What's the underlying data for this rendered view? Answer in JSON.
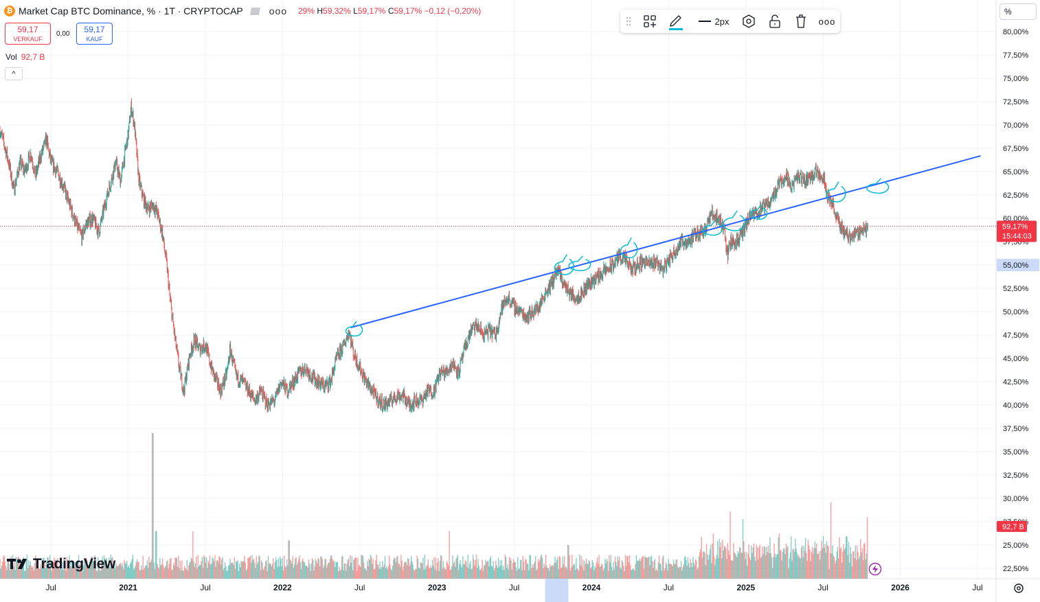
{
  "header": {
    "title": "Market Cap BTC Dominance, % · 1T · CRYPTOCAP",
    "coin_glyph": "₿",
    "more_glyph": "ooo",
    "ohlc": {
      "o": "29%",
      "h_label": "H",
      "h": "59,32%",
      "l_label": "L",
      "l": "59,17%",
      "c_label": "C",
      "c": "59,17%",
      "chg": "−0,12 (−0,20%)"
    }
  },
  "trade": {
    "sell_price": "59,17",
    "sell_label": "VERKAUF",
    "spread": "0,00",
    "buy_price": "59,17",
    "buy_label": "KAUF"
  },
  "volume": {
    "label": "Vol",
    "value": "92,7 B"
  },
  "collapse_glyph": "^",
  "toolbar": {
    "width_label": "2px",
    "more_glyph": "ooo"
  },
  "scale_mode": "%",
  "logo": {
    "text": "TradingView",
    "mark": "17"
  },
  "colors": {
    "up": "#26a69a",
    "down": "#ef5350",
    "trendline": "#2962ff",
    "annotation": "#00bcd4",
    "price_tag": "#f23645",
    "accent": "#2962ff"
  },
  "chart_data": {
    "type": "candlestick",
    "title": "Market Cap BTC Dominance, %",
    "interval": "1T",
    "y_axis": {
      "range": [
        21.4,
        83.4
      ],
      "ticks": [
        "22,50%",
        "25,00%",
        "27,50%",
        "30,00%",
        "32,50%",
        "35,00%",
        "37,50%",
        "40,00%",
        "42,50%",
        "45,00%",
        "47,50%",
        "50,00%",
        "52,50%",
        "55,00%",
        "57,50%",
        "60,00%",
        "62,50%",
        "65,00%",
        "67,50%",
        "70,00%",
        "72,50%",
        "75,00%",
        "77,50%",
        "80,00%"
      ],
      "tick_values": [
        22.5,
        25,
        27.5,
        30,
        32.5,
        35,
        37.5,
        40,
        42.5,
        45,
        47.5,
        50,
        52.5,
        55,
        57.5,
        60,
        62.5,
        65,
        67.5,
        70,
        72.5,
        75,
        77.5,
        80
      ]
    },
    "x_axis": {
      "range": [
        2020.17,
        2026.62
      ],
      "ticks": [
        "Jul",
        "2021",
        "Jul",
        "2022",
        "Jul",
        "2023",
        "Jul",
        "2024",
        "Jul",
        "2025",
        "Jul",
        "2026",
        "Jul"
      ],
      "tick_values": [
        2020.5,
        2021.0,
        2021.5,
        2022.0,
        2022.5,
        2023.0,
        2023.5,
        2024.0,
        2024.5,
        2025.0,
        2025.5,
        2026.0,
        2026.5
      ],
      "highlight_range": [
        2023.7,
        2023.85
      ]
    },
    "series_path": [
      [
        2020.17,
        69.5
      ],
      [
        2020.22,
        66.5
      ],
      [
        2020.26,
        63.0
      ],
      [
        2020.3,
        66.0
      ],
      [
        2020.33,
        65.0
      ],
      [
        2020.37,
        67.0
      ],
      [
        2020.4,
        64.5
      ],
      [
        2020.43,
        66.5
      ],
      [
        2020.47,
        68.5
      ],
      [
        2020.5,
        66.0
      ],
      [
        2020.54,
        65.0
      ],
      [
        2020.58,
        63.5
      ],
      [
        2020.62,
        61.5
      ],
      [
        2020.66,
        59.5
      ],
      [
        2020.7,
        58.0
      ],
      [
        2020.73,
        59.5
      ],
      [
        2020.77,
        60.0
      ],
      [
        2020.81,
        58.5
      ],
      [
        2020.85,
        61.5
      ],
      [
        2020.88,
        63.5
      ],
      [
        2020.92,
        66.0
      ],
      [
        2020.95,
        64.0
      ],
      [
        2021.0,
        69.0
      ],
      [
        2021.02,
        72.0
      ],
      [
        2021.04,
        70.0
      ],
      [
        2021.07,
        64.0
      ],
      [
        2021.1,
        62.0
      ],
      [
        2021.13,
        61.0
      ],
      [
        2021.16,
        61.5
      ],
      [
        2021.19,
        60.5
      ],
      [
        2021.22,
        58.5
      ],
      [
        2021.25,
        55.0
      ],
      [
        2021.27,
        51.5
      ],
      [
        2021.3,
        47.5
      ],
      [
        2021.33,
        44.0
      ],
      [
        2021.36,
        41.5
      ],
      [
        2021.38,
        43.5
      ],
      [
        2021.4,
        45.5
      ],
      [
        2021.43,
        47.0
      ],
      [
        2021.46,
        46.0
      ],
      [
        2021.5,
        46.5
      ],
      [
        2021.53,
        44.5
      ],
      [
        2021.56,
        43.0
      ],
      [
        2021.6,
        41.5
      ],
      [
        2021.64,
        43.5
      ],
      [
        2021.66,
        46.0
      ],
      [
        2021.7,
        43.0
      ],
      [
        2021.74,
        42.5
      ],
      [
        2021.78,
        41.5
      ],
      [
        2021.82,
        40.5
      ],
      [
        2021.86,
        41.5
      ],
      [
        2021.9,
        40.0
      ],
      [
        2021.95,
        40.5
      ],
      [
        2021.99,
        42.5
      ],
      [
        2022.03,
        41.5
      ],
      [
        2022.07,
        42.5
      ],
      [
        2022.11,
        43.5
      ],
      [
        2022.15,
        44.0
      ],
      [
        2022.19,
        43.0
      ],
      [
        2022.23,
        42.5
      ],
      [
        2022.27,
        42.0
      ],
      [
        2022.31,
        42.5
      ],
      [
        2022.35,
        45.0
      ],
      [
        2022.4,
        46.5
      ],
      [
        2022.43,
        48.0
      ],
      [
        2022.46,
        45.5
      ],
      [
        2022.5,
        44.0
      ],
      [
        2022.54,
        42.5
      ],
      [
        2022.58,
        41.5
      ],
      [
        2022.62,
        40.5
      ],
      [
        2022.66,
        40.0
      ],
      [
        2022.7,
        40.5
      ],
      [
        2022.74,
        41.0
      ],
      [
        2022.78,
        41.0
      ],
      [
        2022.82,
        40.0
      ],
      [
        2022.86,
        40.5
      ],
      [
        2022.9,
        40.5
      ],
      [
        2022.94,
        41.5
      ],
      [
        2022.98,
        41.5
      ],
      [
        2023.02,
        43.5
      ],
      [
        2023.06,
        43.5
      ],
      [
        2023.1,
        44.5
      ],
      [
        2023.14,
        43.5
      ],
      [
        2023.18,
        46.0
      ],
      [
        2023.22,
        48.0
      ],
      [
        2023.26,
        48.5
      ],
      [
        2023.3,
        47.5
      ],
      [
        2023.34,
        48.0
      ],
      [
        2023.38,
        47.5
      ],
      [
        2023.42,
        50.5
      ],
      [
        2023.46,
        51.5
      ],
      [
        2023.5,
        50.5
      ],
      [
        2023.54,
        50.0
      ],
      [
        2023.58,
        49.5
      ],
      [
        2023.62,
        50.0
      ],
      [
        2023.66,
        50.5
      ],
      [
        2023.7,
        52.0
      ],
      [
        2023.74,
        53.0
      ],
      [
        2023.78,
        54.5
      ],
      [
        2023.82,
        53.0
      ],
      [
        2023.86,
        52.0
      ],
      [
        2023.9,
        51.5
      ],
      [
        2023.94,
        52.0
      ],
      [
        2023.98,
        53.0
      ],
      [
        2024.02,
        53.5
      ],
      [
        2024.06,
        54.0
      ],
      [
        2024.1,
        54.5
      ],
      [
        2024.14,
        55.0
      ],
      [
        2024.18,
        56.0
      ],
      [
        2024.22,
        55.5
      ],
      [
        2024.26,
        54.5
      ],
      [
        2024.3,
        55.0
      ],
      [
        2024.34,
        55.5
      ],
      [
        2024.38,
        55.0
      ],
      [
        2024.42,
        55.5
      ],
      [
        2024.46,
        54.5
      ],
      [
        2024.5,
        55.5
      ],
      [
        2024.54,
        56.5
      ],
      [
        2024.58,
        57.5
      ],
      [
        2024.62,
        57.5
      ],
      [
        2024.66,
        58.0
      ],
      [
        2024.7,
        58.5
      ],
      [
        2024.74,
        59.0
      ],
      [
        2024.78,
        60.5
      ],
      [
        2024.82,
        60.0
      ],
      [
        2024.86,
        59.0
      ],
      [
        2024.88,
        56.0
      ],
      [
        2024.9,
        57.5
      ],
      [
        2024.94,
        57.5
      ],
      [
        2024.98,
        58.5
      ],
      [
        2025.02,
        60.0
      ],
      [
        2025.06,
        60.5
      ],
      [
        2025.1,
        61.0
      ],
      [
        2025.14,
        61.5
      ],
      [
        2025.18,
        62.5
      ],
      [
        2025.22,
        64.0
      ],
      [
        2025.26,
        64.5
      ],
      [
        2025.3,
        63.5
      ],
      [
        2025.34,
        64.5
      ],
      [
        2025.38,
        64.0
      ],
      [
        2025.42,
        64.5
      ],
      [
        2025.46,
        65.0
      ],
      [
        2025.5,
        64.5
      ],
      [
        2025.53,
        62.5
      ],
      [
        2025.56,
        61.5
      ],
      [
        2025.6,
        59.5
      ],
      [
        2025.64,
        58.5
      ],
      [
        2025.68,
        58.0
      ],
      [
        2025.72,
        58.5
      ],
      [
        2025.76,
        58.8
      ],
      [
        2025.79,
        59.17
      ]
    ],
    "trendline": {
      "from": [
        2022.44,
        48.3
      ],
      "to": [
        2026.52,
        66.7
      ],
      "color": "#2962ff"
    },
    "annotation_circles": [
      [
        2022.46,
        48.0
      ],
      [
        2023.82,
        54.8
      ],
      [
        2023.92,
        55.0
      ],
      [
        2024.24,
        56.6
      ],
      [
        2024.78,
        58.8
      ],
      [
        2024.92,
        59.5
      ],
      [
        2025.08,
        60.5
      ],
      [
        2025.58,
        62.6
      ],
      [
        2025.85,
        63.3
      ]
    ],
    "last_price": {
      "value": 59.17,
      "label": "59,17%",
      "countdown": "15:44:03"
    },
    "volume": {
      "label": "Vol",
      "last_label": "92,7 B",
      "last_level": 27.0,
      "spikes": [
        [
          2021.16,
          37.0
        ],
        [
          2021.18,
          26.5
        ],
        [
          2021.42,
          26.5
        ],
        [
          2022.04,
          25.5
        ],
        [
          2023.08,
          26.5
        ],
        [
          2023.85,
          25.0
        ],
        [
          2024.9,
          28.6
        ],
        [
          2024.98,
          27.8
        ],
        [
          2025.55,
          29.6
        ],
        [
          2025.79,
          28.0
        ]
      ]
    }
  }
}
